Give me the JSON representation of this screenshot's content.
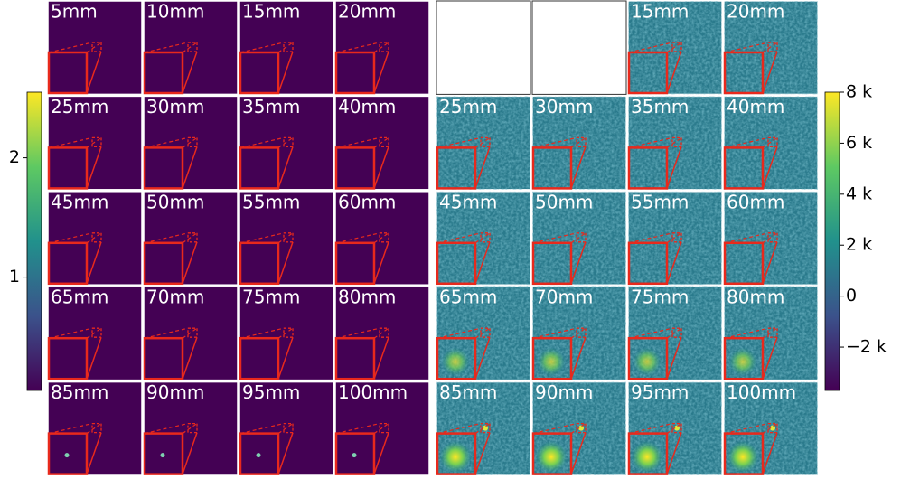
{
  "left_panel": {
    "labels": [
      "5mm",
      "10mm",
      "15mm",
      "20mm",
      "25mm",
      "30mm",
      "35mm",
      "40mm",
      "45mm",
      "50mm",
      "55mm",
      "60mm",
      "65mm",
      "70mm",
      "75mm",
      "80mm",
      "85mm",
      "90mm",
      "95mm",
      "100mm"
    ]
  },
  "right_panel": {
    "labels": [
      null,
      null,
      "15mm",
      "20mm",
      "25mm",
      "30mm",
      "35mm",
      "40mm",
      "45mm",
      "50mm",
      "55mm",
      "60mm",
      "65mm",
      "70mm",
      "75mm",
      "80mm",
      "85mm",
      "90mm",
      "95mm",
      "100mm"
    ]
  },
  "left_colorbar": {
    "lim": [
      0.05,
      2.55
    ],
    "ticks": [
      1,
      2
    ],
    "colormap": [
      "#440154",
      "#3b528b",
      "#21918c",
      "#5ec962",
      "#fde725"
    ]
  },
  "right_colorbar": {
    "lim": [
      -3700,
      8000
    ],
    "ticks": [
      {
        "value": -2000,
        "label": "−2 k"
      },
      {
        "value": 0,
        "label": "0"
      },
      {
        "value": 2000,
        "label": "2 k"
      },
      {
        "value": 4000,
        "label": "4 k"
      },
      {
        "value": 6000,
        "label": "6 k"
      },
      {
        "value": 8000,
        "label": "8 k"
      }
    ],
    "colormap": [
      "#440154",
      "#3b528b",
      "#21918c",
      "#5ec962",
      "#fde725"
    ]
  }
}
